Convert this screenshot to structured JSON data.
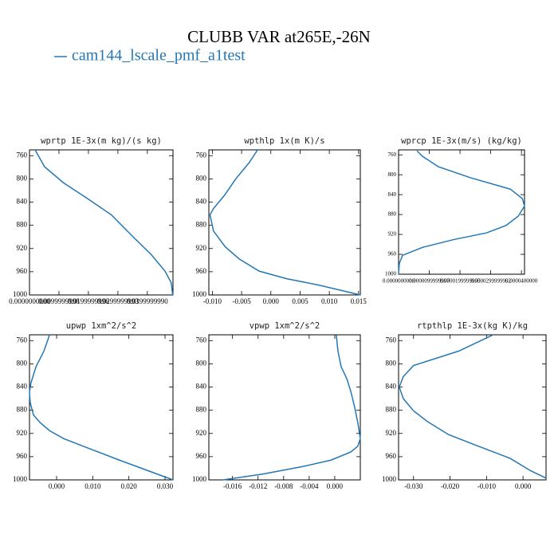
{
  "title": "CLUBB VAR at265E,-26N",
  "legend": {
    "label": "cam144_lscale_pmf_a1test",
    "color": "#2378b5"
  },
  "chart_data": [
    {
      "type": "line",
      "title": "wprtp   1E-3x(m kg)/(s kg)",
      "ylim": [
        750,
        1000
      ],
      "y_inverted": true,
      "yticks": [
        760,
        800,
        840,
        880,
        920,
        960,
        1000
      ],
      "xlim": [
        0,
        0.0487
      ],
      "xticks": [
        {
          "value": 0,
          "label": "0.0000000000"
        },
        {
          "value": 0.01,
          "label": "0.0099999998"
        },
        {
          "value": 0.02,
          "label": "0.0199999996"
        },
        {
          "value": 0.03,
          "label": "0.0299999993"
        },
        {
          "value": 0.04,
          "label": "0.0399999990"
        }
      ],
      "series": [
        {
          "color": "#2378b5",
          "x": [
            0.0019,
            0.0051,
            0.0116,
            0.0197,
            0.0278,
            0.0346,
            0.0414,
            0.046,
            0.0481,
            0.0486
          ],
          "values": [
            750,
            779,
            807,
            834,
            862,
            897,
            931,
            959,
            979,
            1000
          ]
        }
      ]
    },
    {
      "type": "line",
      "title": "wpthlp   1x(m K)/s",
      "ylim": [
        750,
        1000
      ],
      "y_inverted": true,
      "yticks": [
        760,
        800,
        840,
        880,
        920,
        960,
        1000
      ],
      "xlim": [
        -0.0106,
        0.0153
      ],
      "xticks": [
        {
          "value": -0.01,
          "label": "-0.010"
        },
        {
          "value": -0.005,
          "label": "-0.005"
        },
        {
          "value": 0,
          "label": "0.000"
        },
        {
          "value": 0.005,
          "label": "0.005"
        },
        {
          "value": 0.01,
          "label": "0.010"
        },
        {
          "value": 0.015,
          "label": "0.015"
        }
      ],
      "series": [
        {
          "color": "#2378b5",
          "x": [
            -0.0022,
            -0.0037,
            -0.006,
            -0.0079,
            -0.0098,
            -0.0104,
            -0.0098,
            -0.0078,
            -0.0054,
            -0.002,
            0.0027,
            0.0082,
            0.0153
          ],
          "values": [
            749,
            772,
            800,
            828,
            851,
            862,
            890,
            917,
            938,
            959,
            972,
            983,
            1000
          ]
        }
      ]
    },
    {
      "type": "line",
      "title": "wprcp   1E-3x(m/s) (kg/kg)",
      "ylim": [
        750,
        1000
      ],
      "y_inverted": true,
      "small_ticks": true,
      "yticks": [
        760,
        800,
        840,
        880,
        920,
        960,
        1000
      ],
      "xlim": [
        0,
        4.1e-05
      ],
      "xticks": [
        {
          "value": 0,
          "label": "0.0000000000"
        },
        {
          "value": 1e-05,
          "label": "0.0000099999997"
        },
        {
          "value": 2e-05,
          "label": "0.0000199999995"
        },
        {
          "value": 3e-05,
          "label": "0.0000299999992"
        },
        {
          "value": 4e-05,
          "label": "0.0000400000"
        }
      ],
      "series": [
        {
          "color": "#2378b5",
          "x": [
            6e-06,
            7.8e-06,
            1.3e-05,
            2.34e-05,
            3.64e-05,
            4.03e-05,
            4.1e-05,
            3.9e-05,
            3.5e-05,
            2.86e-05,
            1.82e-05,
            7.8e-06,
            1.3e-06,
            2.6e-07,
            0
          ],
          "values": [
            752,
            763,
            784,
            806,
            829,
            848,
            863,
            883,
            902,
            917,
            930,
            946,
            962,
            978,
            1000
          ]
        }
      ]
    },
    {
      "type": "line",
      "title": "upwp   1xm^2/s^2",
      "ylim": [
        750,
        1000
      ],
      "y_inverted": true,
      "yticks": [
        760,
        800,
        840,
        880,
        920,
        960,
        1000
      ],
      "xlim": [
        -0.0075,
        0.0322
      ],
      "xticks": [
        {
          "value": 0,
          "label": "0.000"
        },
        {
          "value": 0.01,
          "label": "0.010"
        },
        {
          "value": 0.02,
          "label": "0.020"
        },
        {
          "value": 0.03,
          "label": "0.030"
        }
      ],
      "series": [
        {
          "color": "#2378b5",
          "x": [
            -0.002,
            -0.0035,
            -0.0057,
            -0.0071,
            -0.0075,
            -0.0073,
            -0.0064,
            -0.0046,
            -0.002,
            0.002,
            0.0086,
            0.0174,
            0.0322
          ],
          "values": [
            751,
            778,
            805,
            833,
            849,
            867,
            888,
            901,
            915,
            929,
            945,
            966,
            1000
          ]
        }
      ]
    },
    {
      "type": "line",
      "title": "vpwp   1xm^2/s^2",
      "ylim": [
        750,
        1000
      ],
      "y_inverted": true,
      "yticks": [
        760,
        800,
        840,
        880,
        920,
        960,
        1000
      ],
      "xlim": [
        -0.0197,
        0.004
      ],
      "xticks": [
        {
          "value": -0.016,
          "label": "-0.016"
        },
        {
          "value": -0.012,
          "label": "-0.012"
        },
        {
          "value": -0.008,
          "label": "-0.008"
        },
        {
          "value": -0.004,
          "label": "-0.004"
        },
        {
          "value": 0,
          "label": "0.000"
        }
      ],
      "series": [
        {
          "color": "#2378b5",
          "x": [
            0.00025,
            0.0005,
            0.001,
            0.0019,
            0.0025,
            0.0031,
            0.0036,
            0.004,
            0.0036,
            0.0025,
            -0.0006,
            -0.005,
            -0.0113,
            -0.0175
          ],
          "values": [
            751,
            778,
            805,
            826,
            847,
            874,
            901,
            929,
            942,
            952,
            966,
            977,
            990,
            1000
          ]
        }
      ]
    },
    {
      "type": "line",
      "title": "rtpthlp   1E-3x(kg K)/kg",
      "ylim": [
        750,
        1000
      ],
      "y_inverted": true,
      "yticks": [
        760,
        800,
        840,
        880,
        920,
        960,
        1000
      ],
      "xlim": [
        -0.0341,
        0.0063
      ],
      "xticks": [
        {
          "value": -0.03,
          "label": "-0.030"
        },
        {
          "value": -0.02,
          "label": "-0.020"
        },
        {
          "value": -0.01,
          "label": "-0.010"
        },
        {
          "value": 0,
          "label": "0.000"
        }
      ],
      "series": [
        {
          "color": "#2378b5",
          "x": [
            -0.0085,
            -0.0176,
            -0.03,
            -0.0328,
            -0.0339,
            -0.0328,
            -0.03,
            -0.0263,
            -0.0204,
            -0.0122,
            -0.0035,
            0.002,
            0.0063
          ],
          "values": [
            751,
            778,
            803,
            822,
            840,
            860,
            881,
            899,
            922,
            942,
            963,
            984,
            997
          ]
        }
      ]
    }
  ]
}
